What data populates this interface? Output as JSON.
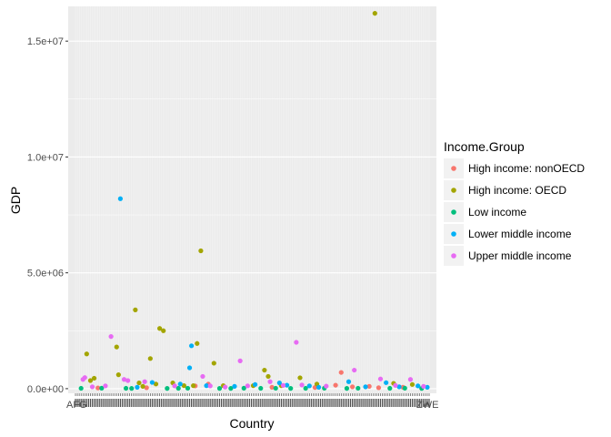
{
  "chart_data": {
    "type": "scatter",
    "xlabel": "Country",
    "ylabel": "GDP",
    "ylim": [
      -200000,
      16500000
    ],
    "yticks": [
      0,
      5000000,
      10000000,
      15000000
    ],
    "ytick_labels": [
      "0.0e+00",
      "5.0e+06",
      "1.0e+07",
      "1.5e+07"
    ],
    "x_tick_labels_visible": [
      "AFG",
      "ZWE"
    ],
    "n_countries": 190,
    "grid": true,
    "legend": {
      "title": "Income.Group",
      "placement": "right",
      "entries": [
        {
          "name": "High income: nonOECD",
          "color": "#F8766D"
        },
        {
          "name": "High income: OECD",
          "color": "#A3A500"
        },
        {
          "name": "Low income",
          "color": "#00BF7D"
        },
        {
          "name": "Lower middle income",
          "color": "#00B0F6"
        },
        {
          "name": "Upper middle income",
          "color": "#E76BF3"
        }
      ]
    },
    "series": [
      {
        "name": "High income: nonOECD",
        "color": "#F8766D",
        "points": [
          [
            12,
            30000
          ],
          [
            38,
            40000
          ],
          [
            64,
            120000
          ],
          [
            71,
            200000
          ],
          [
            105,
            60000
          ],
          [
            128,
            50000
          ],
          [
            139,
            150000
          ],
          [
            142,
            700000
          ],
          [
            148,
            80000
          ],
          [
            157,
            100000
          ],
          [
            162,
            40000
          ],
          [
            175,
            60000
          ]
        ]
      },
      {
        "name": "High income: OECD",
        "color": "#A3A500",
        "points": [
          [
            6,
            1500000
          ],
          [
            8,
            350000
          ],
          [
            10,
            450000
          ],
          [
            22,
            1800000
          ],
          [
            23,
            600000
          ],
          [
            32,
            3400000
          ],
          [
            34,
            250000
          ],
          [
            36,
            100000
          ],
          [
            40,
            1300000
          ],
          [
            43,
            200000
          ],
          [
            45,
            2600000
          ],
          [
            47,
            2500000
          ],
          [
            52,
            250000
          ],
          [
            58,
            130000
          ],
          [
            63,
            130000
          ],
          [
            65,
            1950000
          ],
          [
            67,
            5950000
          ],
          [
            74,
            1100000
          ],
          [
            79,
            130000
          ],
          [
            95,
            130000
          ],
          [
            101,
            800000
          ],
          [
            103,
            530000
          ],
          [
            110,
            130000
          ],
          [
            120,
            470000
          ],
          [
            129,
            200000
          ],
          [
            160,
            16200000
          ],
          [
            170,
            230000
          ],
          [
            180,
            180000
          ]
        ]
      },
      {
        "name": "Low income",
        "color": "#00BF7D",
        "points": [
          [
            3,
            15000
          ],
          [
            14,
            20000
          ],
          [
            27,
            15000
          ],
          [
            30,
            10000
          ],
          [
            49,
            12000
          ],
          [
            55,
            15000
          ],
          [
            60,
            18000
          ],
          [
            77,
            12000
          ],
          [
            83,
            10000
          ],
          [
            90,
            20000
          ],
          [
            99,
            15000
          ],
          [
            107,
            18000
          ],
          [
            115,
            12000
          ],
          [
            123,
            15000
          ],
          [
            133,
            20000
          ],
          [
            145,
            12000
          ],
          [
            151,
            18000
          ],
          [
            168,
            15000
          ],
          [
            176,
            20000
          ],
          [
            185,
            10000
          ]
        ]
      },
      {
        "name": "Lower middle income",
        "color": "#00B0F6",
        "points": [
          [
            24,
            8200000
          ],
          [
            33,
            60000
          ],
          [
            41,
            270000
          ],
          [
            56,
            200000
          ],
          [
            61,
            900000
          ],
          [
            62,
            1850000
          ],
          [
            70,
            130000
          ],
          [
            85,
            100000
          ],
          [
            96,
            180000
          ],
          [
            109,
            250000
          ],
          [
            113,
            150000
          ],
          [
            125,
            120000
          ],
          [
            130,
            60000
          ],
          [
            146,
            300000
          ],
          [
            155,
            80000
          ],
          [
            166,
            260000
          ],
          [
            173,
            80000
          ],
          [
            183,
            120000
          ],
          [
            188,
            60000
          ]
        ]
      },
      {
        "name": "Upper middle income",
        "color": "#E76BF3",
        "points": [
          [
            4,
            400000
          ],
          [
            5,
            480000
          ],
          [
            9,
            80000
          ],
          [
            16,
            120000
          ],
          [
            19,
            2250000
          ],
          [
            26,
            400000
          ],
          [
            28,
            350000
          ],
          [
            37,
            300000
          ],
          [
            53,
            120000
          ],
          [
            68,
            530000
          ],
          [
            72,
            120000
          ],
          [
            80,
            70000
          ],
          [
            88,
            1200000
          ],
          [
            92,
            120000
          ],
          [
            104,
            300000
          ],
          [
            111,
            140000
          ],
          [
            118,
            2000000
          ],
          [
            121,
            160000
          ],
          [
            134,
            110000
          ],
          [
            149,
            800000
          ],
          [
            163,
            420000
          ],
          [
            171,
            140000
          ],
          [
            179,
            400000
          ],
          [
            186,
            100000
          ]
        ]
      }
    ]
  }
}
